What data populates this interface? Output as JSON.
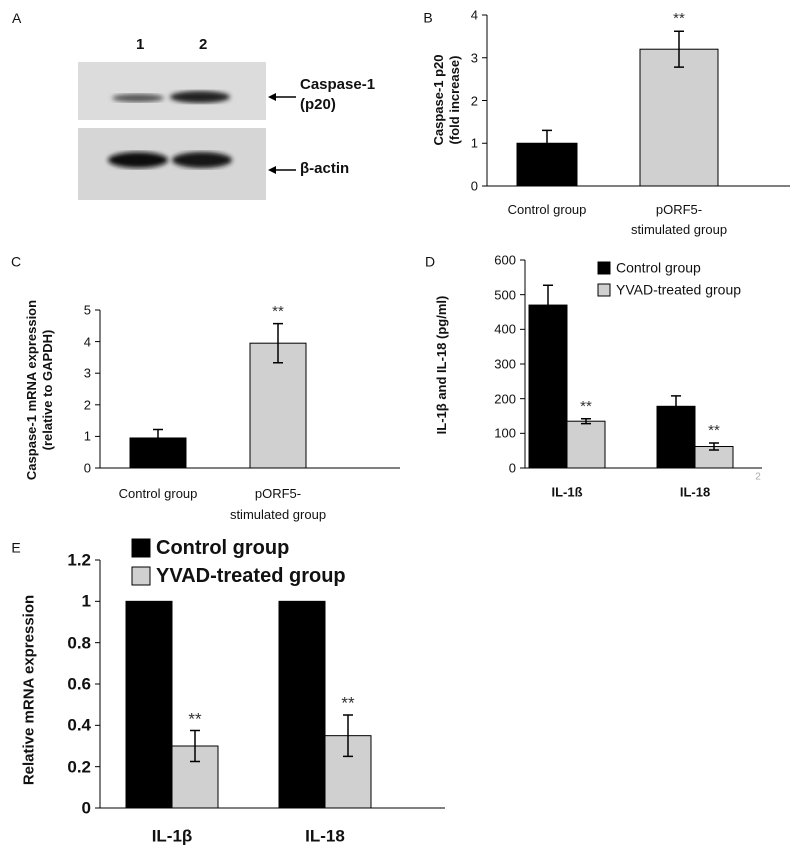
{
  "blot": {
    "panel": "A",
    "lanes": [
      "1",
      "2"
    ],
    "bands": [
      "Caspase-1\n(p20)",
      "β-actin"
    ]
  },
  "chart_data": [
    {
      "type": "bar",
      "panel": "B",
      "ylabel": "Caspase-1 p20\n(fold increase)",
      "categories": [
        "Control group",
        "pORF5-\nstimulated group"
      ],
      "values": [
        1.0,
        3.2
      ],
      "errors": [
        0.3,
        0.42
      ],
      "colors": [
        "#000000",
        "#d0d0d0"
      ],
      "markers": [
        null,
        "**"
      ],
      "ylim": [
        0,
        4
      ],
      "yticks": [
        0,
        1,
        2,
        3,
        4
      ],
      "grid": false
    },
    {
      "type": "bar",
      "panel": "C",
      "ylabel": "Caspase-1 mRNA expression\n(relative to GAPDH)",
      "categories": [
        "Control group",
        "pORF5-\nstimulated group"
      ],
      "values": [
        0.95,
        3.95
      ],
      "errors": [
        0.27,
        0.62
      ],
      "colors": [
        "#000000",
        "#d0d0d0"
      ],
      "markers": [
        null,
        "**"
      ],
      "ylim": [
        0,
        5
      ],
      "yticks": [
        0,
        1,
        2,
        3,
        4,
        5
      ],
      "grid": false
    },
    {
      "type": "grouped-bar",
      "panel": "D",
      "ylabel": "IL-1β and IL-18 (pg/ml)",
      "note": "2",
      "categories": [
        "IL-1ß",
        "IL-18"
      ],
      "series": [
        {
          "name": "Control group",
          "color": "#000000",
          "values": [
            470,
            178
          ],
          "errors": [
            57,
            30
          ],
          "markers": [
            null,
            null
          ]
        },
        {
          "name": "YVAD-treated group",
          "color": "#d0d0d0",
          "values": [
            135,
            62
          ],
          "errors": [
            7,
            10
          ],
          "markers": [
            "**",
            "**"
          ]
        }
      ],
      "ylim": [
        0,
        600
      ],
      "yticks": [
        0,
        100,
        200,
        300,
        400,
        500,
        600
      ],
      "grid": false,
      "legend": "top-right"
    },
    {
      "type": "grouped-bar",
      "panel": "E",
      "ylabel": "Relative mRNA expression",
      "categories": [
        "IL-1β",
        "IL-18"
      ],
      "series": [
        {
          "name": "Control group",
          "color": "#000000",
          "values": [
            1,
            1
          ],
          "errors": [
            null,
            null
          ],
          "markers": [
            null,
            null
          ]
        },
        {
          "name": "YVAD-treated group",
          "color": "#d0d0d0",
          "values": [
            0.3,
            0.35
          ],
          "errors": [
            0.075,
            0.1
          ],
          "markers": [
            "**",
            "**"
          ]
        }
      ],
      "ylim": [
        0,
        1.2
      ],
      "yticks": [
        0,
        0.2,
        0.4,
        0.6,
        0.8,
        1,
        1.2
      ],
      "grid": false,
      "legend": "top-left"
    }
  ]
}
